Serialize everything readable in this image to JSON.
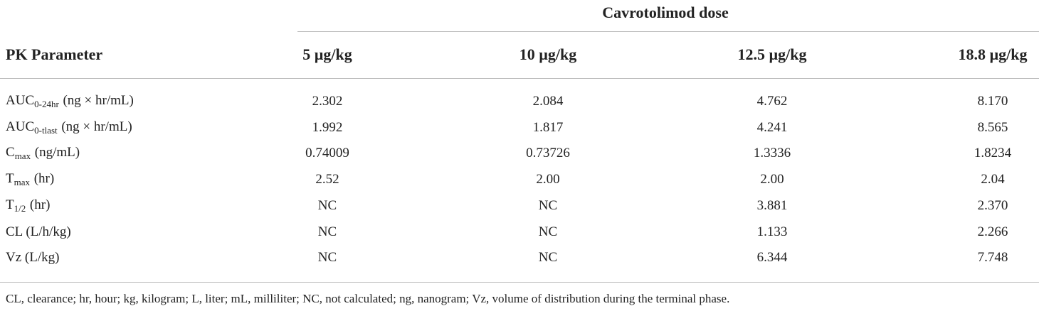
{
  "header": {
    "group": "Cavrotolimod dose",
    "columns": [
      "PK Parameter",
      "5 µg/kg",
      "10 µg/kg",
      "12.5 µg/kg",
      "18.8 µg/kg"
    ]
  },
  "rows": [
    {
      "label": {
        "main": "AUC",
        "sub": "0-24hr",
        "unit": "(ng × hr/mL)"
      },
      "cells": [
        "2.302",
        "2.084",
        "4.762",
        "8.170"
      ]
    },
    {
      "label": {
        "main": "AUC",
        "sub": "0-tlast",
        "unit": "(ng × hr/mL)"
      },
      "cells": [
        "1.992",
        "1.817",
        "4.241",
        "8.565"
      ]
    },
    {
      "label": {
        "main": "C",
        "sub": "max",
        "unit": "(ng/mL)"
      },
      "cells": [
        "0.74009",
        "0.73726",
        "1.3336",
        "1.8234"
      ]
    },
    {
      "label": {
        "main": "T",
        "sub": "max",
        "unit": "(hr)"
      },
      "cells": [
        "2.52",
        "2.00",
        "2.00",
        "2.04"
      ]
    },
    {
      "label": {
        "main": "T",
        "sub": "1/2",
        "unit": "(hr)"
      },
      "cells": [
        "NC",
        "NC",
        "3.881",
        "2.370"
      ]
    },
    {
      "label": {
        "main": "CL (L/h/kg)"
      },
      "cells": [
        "NC",
        "NC",
        "1.133",
        "2.266"
      ]
    },
    {
      "label": {
        "main": "Vz (L/kg)"
      },
      "cells": [
        "NC",
        "NC",
        "6.344",
        "7.748"
      ]
    }
  ],
  "footnote": "CL, clearance; hr, hour; kg, kilogram; L, liter; mL, milliliter; NC, not calculated; ng, nanogram; Vz, volume of distribution during the terminal phase."
}
